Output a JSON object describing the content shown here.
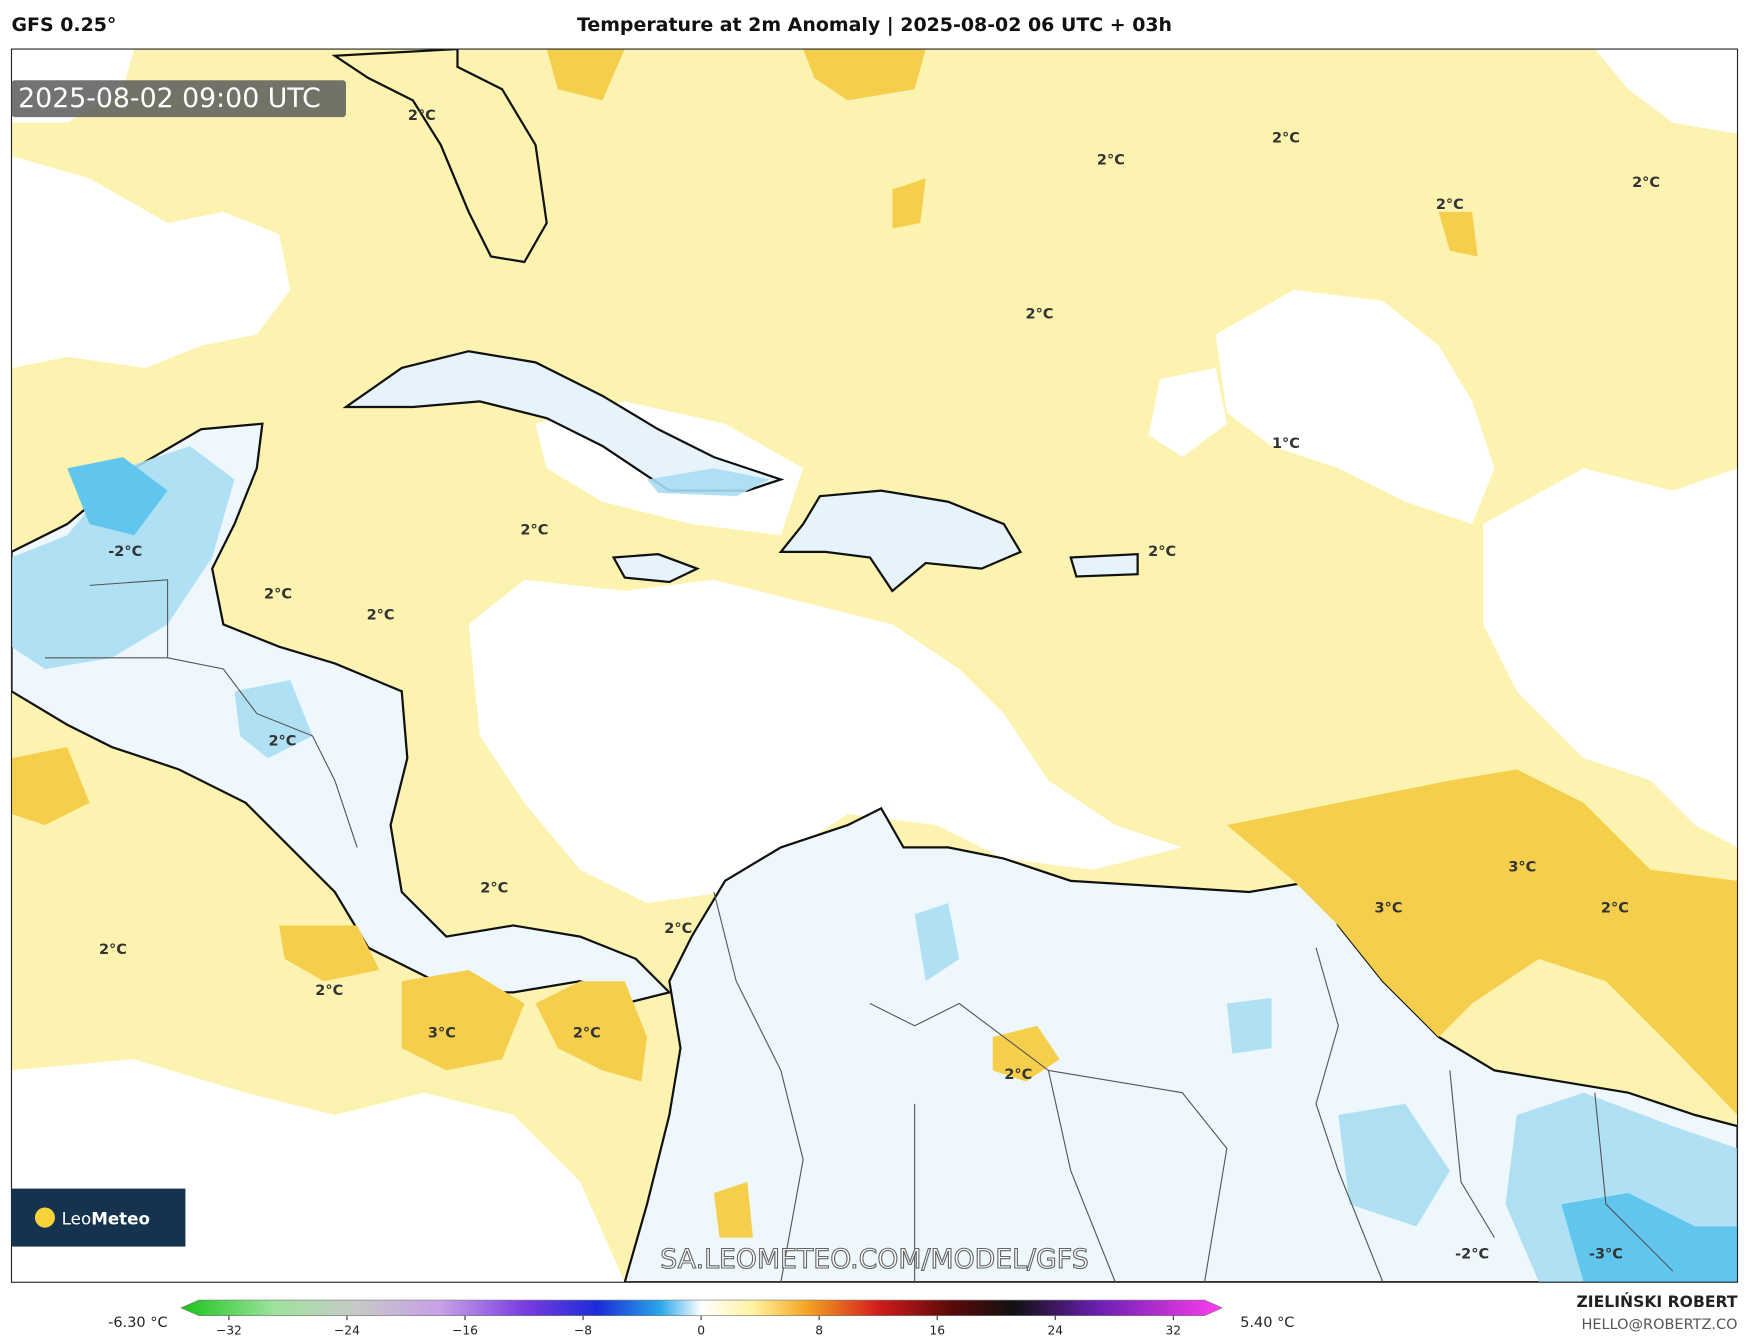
{
  "header": {
    "model": "GFS 0.25°",
    "title": "Temperature at 2m Anomaly | 2025-08-02 06 UTC + 03h"
  },
  "map": {
    "timestamp": "2025-08-02 09:00 UTC",
    "labels": [
      "2°C",
      "2°C",
      "2°C",
      "2°C",
      "2°C",
      "2°C",
      "1°C",
      "2°C",
      "-2°C",
      "2°C",
      "2°C",
      "2°C",
      "2°C",
      "3°C",
      "3°C",
      "2°C",
      "2°C",
      "2°C",
      "2°C",
      "2°C",
      "3°C",
      "2°C",
      "2°C",
      "-2°C",
      "-3°C"
    ],
    "watermark": "SA.LEOMETEO.COM/MODEL/GFS",
    "logo": {
      "name": "Leo",
      "bold": "Meteo"
    }
  },
  "colorbar": {
    "min_label": "-6.30 °C",
    "max_label": "5.40 °C",
    "ticks": [
      "−32",
      "−24",
      "−16",
      "−8",
      "0",
      "8",
      "16",
      "24",
      "32"
    ]
  },
  "footer": {
    "author": "ZIELIŃSKI ROBERT",
    "email": "HELLO@ROBERTZ.CO"
  }
}
